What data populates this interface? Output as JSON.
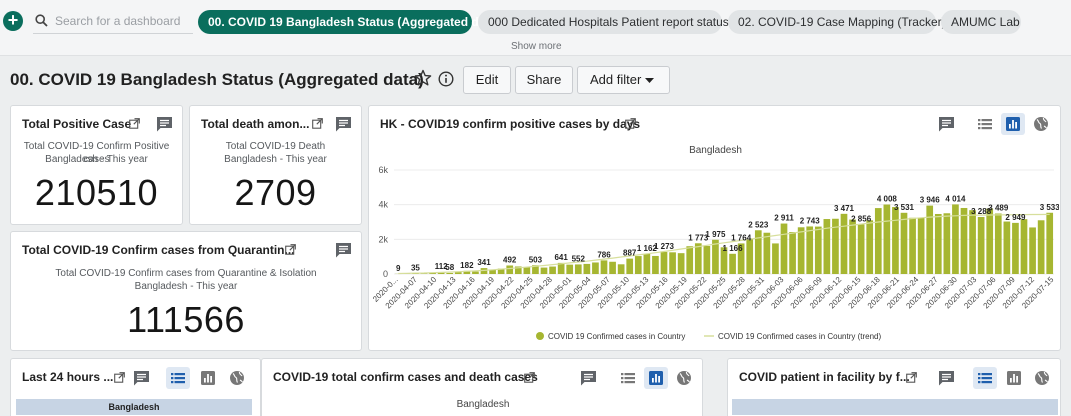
{
  "topbar": {
    "search_placeholder": "Search for a dashboard",
    "tabs": [
      {
        "label": "00. COVID 19 Bangladesh Status (Aggregated data)",
        "active": true
      },
      {
        "label": "000 Dedicated Hospitals Patient report status",
        "active": false
      },
      {
        "label": "02. COVID-19 Case Mapping (Tracker)",
        "active": false
      },
      {
        "label": "AMUMC Lab",
        "active": false
      }
    ],
    "show_more": "Show more"
  },
  "dashboard": {
    "title": "00. COVID 19 Bangladesh Status (Aggregated data)",
    "edit_label": "Edit",
    "share_label": "Share",
    "filter_label": "Add filter"
  },
  "cards": {
    "positive": {
      "title": "Total Positive Case",
      "line1": "Total COVID-19 Confirm Positive cases",
      "line2": "Bangladesh - This year",
      "value": "210510"
    },
    "death": {
      "title": "Total death amon...",
      "line1": "Total COVID-19 Death",
      "line2": "Bangladesh - This year",
      "value": "2709"
    },
    "quarantine": {
      "title": "Total COVID-19 Confirm cases from Quarantin...",
      "line1": "Total COVID-19 Confirm cases from Quarantine & Isolation",
      "line2": "Bangladesh - This year",
      "value": "111566"
    }
  },
  "bottom": {
    "last24_title": "Last 24 hours ...",
    "last24_table_header": "Bangladesh",
    "confirm_death_title": "COVID-19 total confirm cases and death cases",
    "confirm_death_subtitle": "Bangladesh",
    "facility_title": "COVID patient in facility by f..."
  },
  "colors": {
    "accent": "#0a6e5d",
    "bar": "#a6b631",
    "trend": "#d7df9c",
    "toggle_active": "#1f5fad"
  },
  "chart_data": {
    "type": "bar",
    "title": "HK - COVID19 confirm positive cases by days",
    "subtitle": "Bangladesh",
    "ylim": [
      0,
      6000
    ],
    "yticks": [
      "0",
      "2k",
      "4k",
      "6k"
    ],
    "xtick_labels": [
      "2020-0...",
      "2020-04-07",
      "2020-04-10",
      "2020-04-13",
      "2020-04-16",
      "2020-04-19",
      "2020-04-22",
      "2020-04-25",
      "2020-04-28",
      "2020-05-01",
      "2020-05-04",
      "2020-05-07",
      "2020-05-10",
      "2020-05-13",
      "2020-05-16",
      "2020-05-19",
      "2020-05-22",
      "2020-05-25",
      "2020-05-28",
      "2020-05-31",
      "2020-06-03",
      "2020-06-06",
      "2020-06-09",
      "2020-06-12",
      "2020-06-15",
      "2020-06-18",
      "2020-06-21",
      "2020-06-24",
      "2020-06-27",
      "2020-06-30",
      "2020-07-03",
      "2020-07-06",
      "2020-07-09",
      "2020-07-12",
      "2020-07-15"
    ],
    "series": [
      {
        "name": "COVID 19 Confirmed cases in Country",
        "values": [
          9,
          18,
          35,
          20,
          60,
          112,
          58,
          105,
          182,
          139,
          341,
          230,
          312,
          492,
          434,
          390,
          503,
          370,
          430,
          641,
          540,
          552,
          582,
          665,
          786,
          706,
          560,
          887,
          1034,
          1162,
          1041,
          1273,
          1251,
          1202,
          1602,
          1773,
          1617,
          1975,
          1541,
          1166,
          1764,
          2029,
          2523,
          2381,
          1764,
          2911,
          2423,
          2695,
          2743,
          2735,
          3171,
          3187,
          3471,
          3141,
          2856,
          3099,
          3803,
          4008,
          3862,
          3531,
          3243,
          3240,
          3946,
          3462,
          3504,
          4014,
          3809,
          3682,
          3288,
          3775,
          3489,
          3027,
          2949,
          3163,
          2686,
          3099,
          3533
        ]
      },
      {
        "name": "COVID 19 Confirmed cases in Country (trend)",
        "values": [
          30,
          40,
          50,
          60,
          75,
          90,
          110,
          130,
          155,
          180,
          210,
          245,
          280,
          320,
          360,
          400,
          445,
          490,
          540,
          590,
          640,
          690,
          740,
          800,
          860,
          920,
          980,
          1040,
          1100,
          1165,
          1230,
          1300,
          1370,
          1440,
          1510,
          1580,
          1655,
          1730,
          1800,
          1870,
          1940,
          2010,
          2080,
          2150,
          2220,
          2290,
          2360,
          2430,
          2500,
          2570,
          2640,
          2700,
          2760,
          2820,
          2880,
          2940,
          3000,
          3050,
          3100,
          3150,
          3200,
          3240,
          3280,
          3310,
          3340,
          3360,
          3380,
          3390,
          3400,
          3405,
          3410,
          3415,
          3420,
          3425,
          3430,
          3435,
          3440
        ]
      }
    ],
    "data_labels": [
      {
        "index": 0,
        "text": "9"
      },
      {
        "index": 2,
        "text": "35"
      },
      {
        "index": 5,
        "text": "112"
      },
      {
        "index": 6,
        "text": "58"
      },
      {
        "index": 8,
        "text": "182"
      },
      {
        "index": 10,
        "text": "341"
      },
      {
        "index": 13,
        "text": "492"
      },
      {
        "index": 16,
        "text": "503"
      },
      {
        "index": 19,
        "text": "641"
      },
      {
        "index": 21,
        "text": "552"
      },
      {
        "index": 24,
        "text": "786"
      },
      {
        "index": 27,
        "text": "887"
      },
      {
        "index": 29,
        "text": "1 162"
      },
      {
        "index": 31,
        "text": "1 273"
      },
      {
        "index": 35,
        "text": "1 773"
      },
      {
        "index": 37,
        "text": "1 975"
      },
      {
        "index": 39,
        "text": "1 166"
      },
      {
        "index": 40,
        "text": "1 764"
      },
      {
        "index": 42,
        "text": "2 523"
      },
      {
        "index": 45,
        "text": "2 911"
      },
      {
        "index": 48,
        "text": "2 743"
      },
      {
        "index": 52,
        "text": "3 471"
      },
      {
        "index": 54,
        "text": "2 856"
      },
      {
        "index": 57,
        "text": "4 008"
      },
      {
        "index": 59,
        "text": "3 531"
      },
      {
        "index": 62,
        "text": "3 946"
      },
      {
        "index": 65,
        "text": "4 014"
      },
      {
        "index": 68,
        "text": "3 288"
      },
      {
        "index": 70,
        "text": "3 489"
      },
      {
        "index": 72,
        "text": "2 949"
      },
      {
        "index": 76,
        "text": "3 533"
      }
    ]
  }
}
